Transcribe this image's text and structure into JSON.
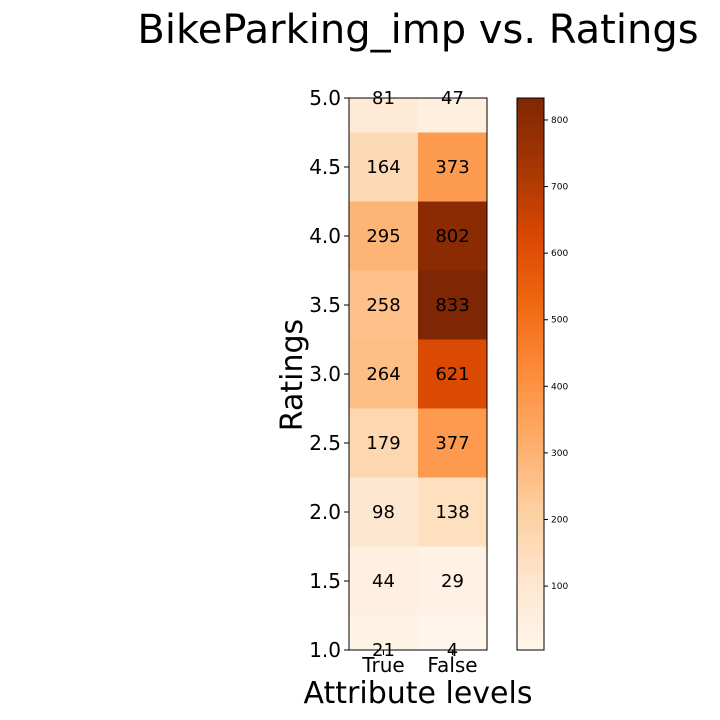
{
  "chart_data": {
    "type": "heatmap",
    "title": "BikeParking_imp vs. Ratings",
    "xlabel": "Attribute levels",
    "ylabel": "Ratings",
    "x_categories": [
      "True",
      "False"
    ],
    "y_categories": [
      "1.0",
      "1.5",
      "2.0",
      "2.5",
      "3.0",
      "3.5",
      "4.0",
      "4.5",
      "5.0"
    ],
    "y_tick_labels": [
      "1.0",
      "1.5",
      "2.0",
      "2.5",
      "3.0",
      "3.5",
      "4.0",
      "4.5",
      "5.0"
    ],
    "values": [
      [
        21,
        4
      ],
      [
        44,
        29
      ],
      [
        98,
        138
      ],
      [
        179,
        377
      ],
      [
        264,
        621
      ],
      [
        258,
        833
      ],
      [
        295,
        802
      ],
      [
        164,
        373
      ],
      [
        81,
        47
      ]
    ],
    "colormap": "Oranges",
    "colorbar": {
      "min": 4,
      "max": 833,
      "ticks": [
        100,
        200,
        300,
        400,
        500,
        600,
        700,
        800
      ]
    },
    "grid": false
  }
}
